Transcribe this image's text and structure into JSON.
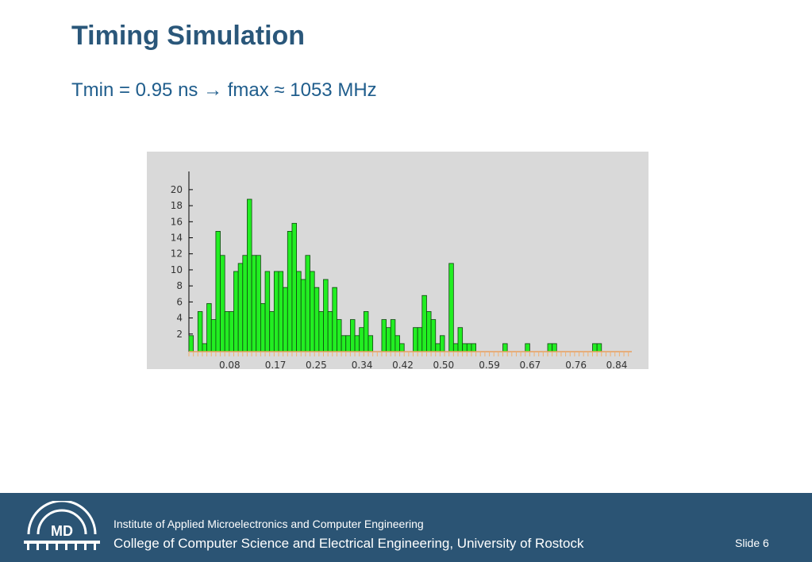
{
  "slide": {
    "title": "Timing Simulation",
    "subtitle": "Tmin = 0.95 ns → fmax ≈ 1053 MHz"
  },
  "footer": {
    "line1": "Institute of Applied Microelectronics and Computer Engineering",
    "line2": "College of Computer Science and Electrical Engineering, University of Rostock",
    "slide_number": "Slide 6",
    "logo_text": "MD",
    "logo_icon": "md-logo-icon",
    "background_color": "#2b5474"
  },
  "chart_data": {
    "type": "bar",
    "title": "",
    "xlabel": "",
    "ylabel": "",
    "bar_color": "#22ee22",
    "background_color": "#d9d9d9",
    "y_ticks": [
      "2",
      "4",
      "6",
      "8",
      "10",
      "12",
      "14",
      "16",
      "18",
      "20"
    ],
    "x_ticks": [
      "0.08",
      "0.17",
      "0.25",
      "0.34",
      "0.42",
      "0.50",
      "0.59",
      "0.67",
      "0.76",
      "0.84"
    ],
    "xlim": [
      0,
      0.84
    ],
    "ylim": [
      0,
      22
    ],
    "values": [
      2,
      0,
      5,
      1,
      6,
      4,
      15,
      12,
      5,
      5,
      10,
      11,
      12,
      19,
      12,
      12,
      6,
      10,
      5,
      10,
      10,
      8,
      15,
      16,
      10,
      9,
      12,
      10,
      8,
      5,
      9,
      5,
      8,
      4,
      2,
      2,
      4,
      2,
      3,
      5,
      2,
      0,
      0,
      4,
      3,
      4,
      2,
      1,
      0,
      0,
      3,
      3,
      7,
      5,
      4,
      1,
      2,
      0,
      11,
      1,
      3,
      1,
      1,
      1,
      0,
      0,
      0,
      0,
      0,
      0,
      1,
      0,
      0,
      0,
      0,
      1,
      0,
      0,
      0,
      0,
      1,
      1,
      0,
      0,
      0,
      0,
      0,
      0,
      0,
      0,
      1,
      1,
      0
    ]
  }
}
